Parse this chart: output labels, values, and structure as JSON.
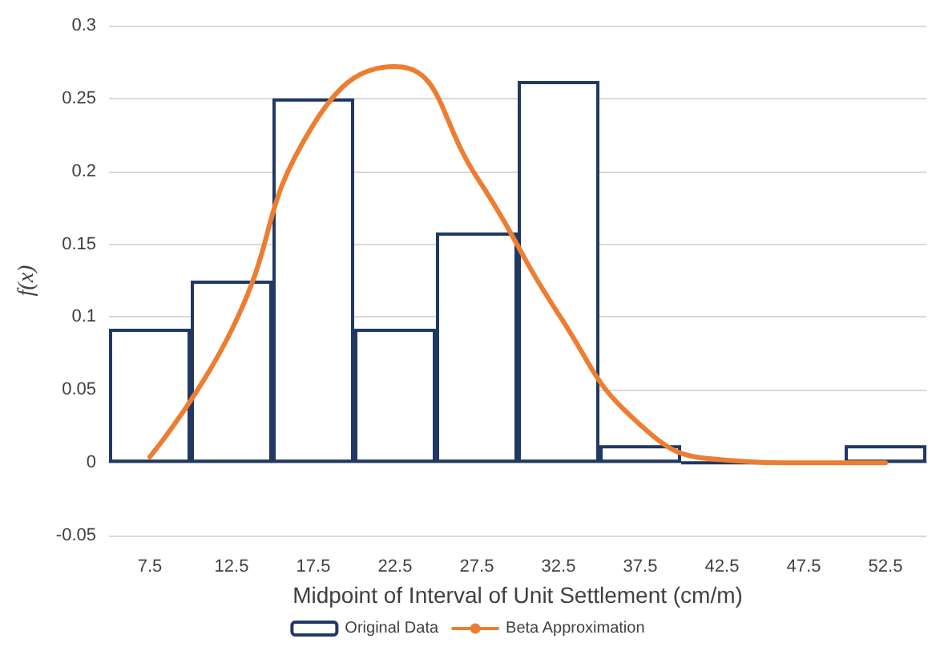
{
  "chart_data": {
    "type": "bar",
    "xlabel": "Midpoint of Interval of Unit Settlement (cm/m)",
    "ylabel": "f(x)",
    "categories": [
      "7.5",
      "12.5",
      "17.5",
      "22.5",
      "27.5",
      "32.5",
      "37.5",
      "42.5",
      "47.5",
      "52.5"
    ],
    "series": [
      {
        "name": "Original Data",
        "color": "#203864",
        "values": [
          0.092,
          0.125,
          0.25,
          0.092,
          0.158,
          0.262,
          0.012,
          0,
          0,
          0.012
        ]
      },
      {
        "name": "Beta Approximation",
        "type": "line",
        "color": "#ed7d31",
        "marker": "none",
        "values": [
          0.004,
          0.091,
          0.232,
          0.272,
          0.196,
          0.102,
          0.026,
          0.002,
          0,
          0
        ]
      }
    ],
    "ylim": [
      -0.05,
      0.3
    ],
    "yticks": [
      -0.05,
      0,
      0.05,
      0.1,
      0.15,
      0.2,
      0.25,
      0.3
    ],
    "grid": "y",
    "legend": "bottom"
  }
}
